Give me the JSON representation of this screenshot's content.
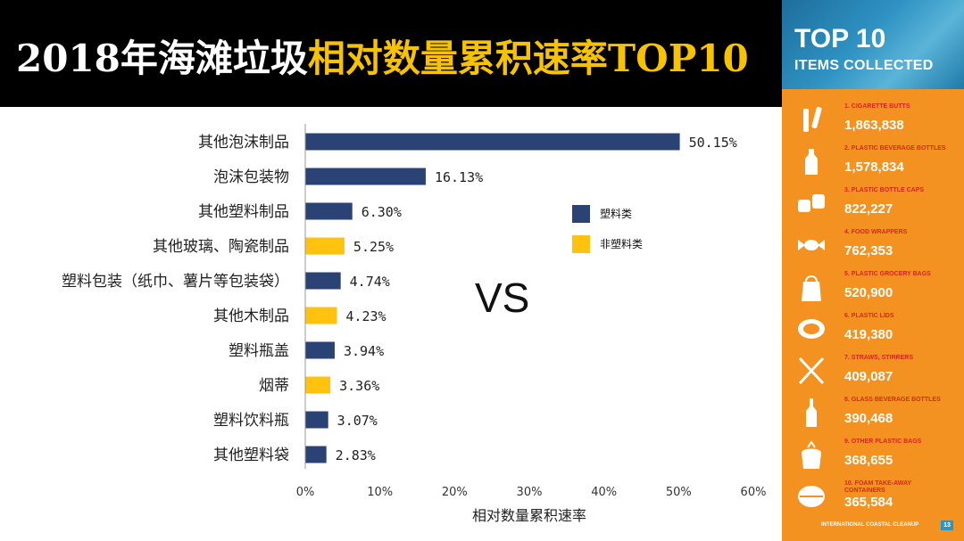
{
  "title": {
    "part1": "2018年海滩垃圾",
    "part2": "相对数量累积速率TOP10"
  },
  "colors": {
    "plastic": "#2a4274",
    "non_plastic": "#ffc20e",
    "title_accent": "#f7c300",
    "panel_orange": "#f39221"
  },
  "vs_text": "VS",
  "chart_data": {
    "type": "bar",
    "orientation": "horizontal",
    "categories": [
      "其他泡沫制品",
      "泡沫包装物",
      "其他塑料制品",
      "其他玻璃、陶瓷制品",
      "塑料包装（纸巾、薯片等包装袋）",
      "其他木制品",
      "塑料瓶盖",
      "烟蒂",
      "塑料饮料瓶",
      "其他塑料袋"
    ],
    "values": [
      50.15,
      16.13,
      6.3,
      5.25,
      4.74,
      4.23,
      3.94,
      3.36,
      3.07,
      2.83
    ],
    "value_labels": [
      "50.15%",
      "16.13%",
      "6.30%",
      "5.25%",
      "4.74%",
      "4.23%",
      "3.94%",
      "3.36%",
      "3.07%",
      "2.83%"
    ],
    "groups": [
      "塑料类",
      "塑料类",
      "塑料类",
      "非塑料类",
      "塑料类",
      "非塑料类",
      "塑料类",
      "非塑料类",
      "塑料类",
      "塑料类"
    ],
    "legend": [
      {
        "name": "塑料类",
        "color": "#2a4274"
      },
      {
        "name": "非塑料类",
        "color": "#ffc20e"
      }
    ],
    "legend_position": "right",
    "xlabel": "相对数量累积速率",
    "xlim": [
      0,
      60
    ],
    "xticks": [
      0,
      10,
      20,
      30,
      40,
      50,
      60
    ],
    "xtick_labels": [
      "0%",
      "10%",
      "20%",
      "30%",
      "40%",
      "50%",
      "60%"
    ],
    "grid": false
  },
  "side_panel": {
    "heading_1": "TOP 10",
    "heading_2": "ITEMS COLLECTED",
    "footer": "INTERNATIONAL COASTAL CLEANUP",
    "page": "13",
    "items": [
      {
        "name": "1. CIGARETTE BUTTS",
        "count": "1,863,838",
        "icon": "cigarette-icon"
      },
      {
        "name": "2. PLASTIC BEVERAGE BOTTLES",
        "count": "1,578,834",
        "icon": "bottle-icon"
      },
      {
        "name": "3. PLASTIC BOTTLE CAPS",
        "count": "822,227",
        "icon": "bottle-cap-icon"
      },
      {
        "name": "4. FOOD WRAPPERS",
        "count": "762,353",
        "icon": "candy-wrapper-icon"
      },
      {
        "name": "5. PLASTIC GROCERY BAGS",
        "count": "520,900",
        "icon": "grocery-bag-icon"
      },
      {
        "name": "6. PLASTIC LIDS",
        "count": "419,380",
        "icon": "lid-icon"
      },
      {
        "name": "7. STRAWS, STIRRERS",
        "count": "409,087",
        "icon": "straws-icon"
      },
      {
        "name": "8. GLASS BEVERAGE BOTTLES",
        "count": "390,468",
        "icon": "glass-bottle-icon"
      },
      {
        "name": "9. OTHER PLASTIC BAGS",
        "count": "368,655",
        "icon": "plastic-bag-icon"
      },
      {
        "name": "10. FOAM TAKE-AWAY CONTAINERS",
        "count": "365,584",
        "icon": "foam-container-icon"
      }
    ]
  }
}
